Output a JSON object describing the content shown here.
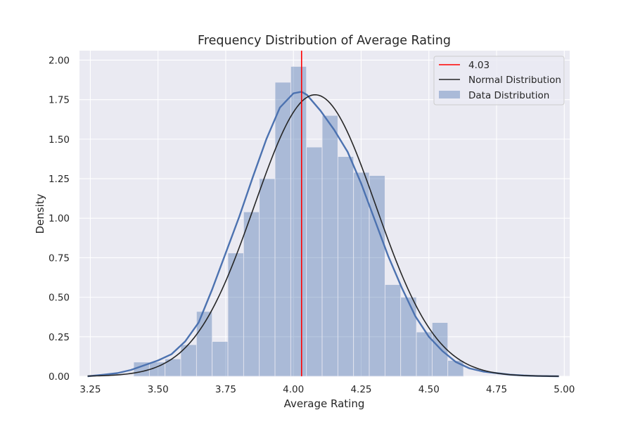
{
  "chart_data": {
    "type": "bar",
    "title": "Frequency Distribution of Average Rating",
    "xlabel": "Average Rating",
    "ylabel": "Density",
    "xlim": [
      3.21,
      5.02
    ],
    "ylim": [
      0,
      2.06
    ],
    "xticks": [
      "3.25",
      "3.50",
      "3.75",
      "4.00",
      "4.25",
      "4.50",
      "4.75",
      "5.00"
    ],
    "yticks": [
      "0.00",
      "0.25",
      "0.50",
      "0.75",
      "1.00",
      "1.25",
      "1.50",
      "1.75",
      "2.00"
    ],
    "grid": true,
    "legend_position": "top-right",
    "mean_line": {
      "x": 4.03,
      "label": "4.03",
      "color": "#ff0000"
    },
    "histogram": {
      "name": "Data Distribution",
      "color": "#4c72b0",
      "bin_edges": [
        3.41,
        3.468,
        3.526,
        3.584,
        3.642,
        3.7,
        3.758,
        3.816,
        3.874,
        3.932,
        3.99,
        4.048,
        4.106,
        4.164,
        4.222,
        4.28,
        4.338,
        4.396,
        4.454,
        4.512,
        4.57,
        4.628,
        4.686
      ],
      "densities": [
        0.09,
        0.09,
        0.11,
        0.2,
        0.41,
        0.22,
        0.78,
        1.04,
        1.25,
        1.86,
        1.96,
        1.45,
        1.65,
        1.39,
        1.29,
        1.27,
        0.58,
        0.5,
        0.28,
        0.34,
        0.1,
        0.0
      ]
    },
    "kde": {
      "color": "#4c72b0",
      "x": [
        3.24,
        3.3,
        3.35,
        3.4,
        3.45,
        3.5,
        3.55,
        3.6,
        3.65,
        3.7,
        3.75,
        3.8,
        3.85,
        3.9,
        3.95,
        4.0,
        4.03,
        4.05,
        4.1,
        4.15,
        4.2,
        4.25,
        4.3,
        4.35,
        4.4,
        4.45,
        4.5,
        4.55,
        4.6,
        4.65,
        4.7,
        4.75,
        4.8,
        4.85,
        4.9,
        4.98
      ],
      "y": [
        0.0,
        0.01,
        0.02,
        0.04,
        0.07,
        0.1,
        0.14,
        0.22,
        0.34,
        0.55,
        0.78,
        1.01,
        1.26,
        1.5,
        1.7,
        1.79,
        1.8,
        1.78,
        1.68,
        1.56,
        1.42,
        1.22,
        0.99,
        0.76,
        0.56,
        0.38,
        0.25,
        0.16,
        0.09,
        0.05,
        0.03,
        0.02,
        0.01,
        0.005,
        0.002,
        0.0
      ]
    },
    "normal": {
      "name": "Normal Distribution",
      "color": "#262626",
      "mean": 4.08,
      "std": 0.224,
      "x_range": [
        3.24,
        4.98
      ]
    },
    "legend": [
      "4.03",
      "Normal Distribution",
      "Data Distribution"
    ]
  }
}
